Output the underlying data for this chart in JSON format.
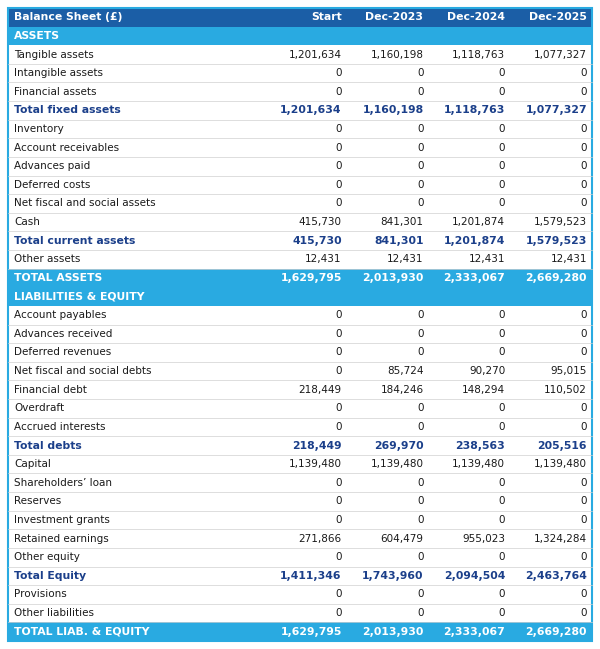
{
  "title": "Balance Sheet (£)",
  "columns": [
    "Balance Sheet (£)",
    "Start",
    "Dec-2023",
    "Dec-2024",
    "Dec-2025"
  ],
  "header_bg": "#1b5ea6",
  "header_text": "#ffffff",
  "section_bg": "#29aae1",
  "section_text": "#ffffff",
  "total_text": "#1b3f8a",
  "footer_bg": "#29aae1",
  "footer_text": "#ffffff",
  "normal_row_bg": "#ffffff",
  "rows": [
    {
      "label": "ASSETS",
      "values": [
        "",
        "",
        "",
        ""
      ],
      "type": "section"
    },
    {
      "label": "Tangible assets",
      "values": [
        "1,201,634",
        "1,160,198",
        "1,118,763",
        "1,077,327"
      ],
      "type": "data"
    },
    {
      "label": "Intangible assets",
      "values": [
        "0",
        "0",
        "0",
        "0"
      ],
      "type": "data"
    },
    {
      "label": "Financial assets",
      "values": [
        "0",
        "0",
        "0",
        "0"
      ],
      "type": "data"
    },
    {
      "label": "Total fixed assets",
      "values": [
        "1,201,634",
        "1,160,198",
        "1,118,763",
        "1,077,327"
      ],
      "type": "total"
    },
    {
      "label": "Inventory",
      "values": [
        "0",
        "0",
        "0",
        "0"
      ],
      "type": "data"
    },
    {
      "label": "Account receivables",
      "values": [
        "0",
        "0",
        "0",
        "0"
      ],
      "type": "data"
    },
    {
      "label": "Advances paid",
      "values": [
        "0",
        "0",
        "0",
        "0"
      ],
      "type": "data"
    },
    {
      "label": "Deferred costs",
      "values": [
        "0",
        "0",
        "0",
        "0"
      ],
      "type": "data"
    },
    {
      "label": "Net fiscal and social assets",
      "values": [
        "0",
        "0",
        "0",
        "0"
      ],
      "type": "data"
    },
    {
      "label": "Cash",
      "values": [
        "415,730",
        "841,301",
        "1,201,874",
        "1,579,523"
      ],
      "type": "data"
    },
    {
      "label": "Total current assets",
      "values": [
        "415,730",
        "841,301",
        "1,201,874",
        "1,579,523"
      ],
      "type": "total"
    },
    {
      "label": "Other assets",
      "values": [
        "12,431",
        "12,431",
        "12,431",
        "12,431"
      ],
      "type": "data"
    },
    {
      "label": "TOTAL ASSETS",
      "values": [
        "1,629,795",
        "2,013,930",
        "2,333,067",
        "2,669,280"
      ],
      "type": "footer"
    },
    {
      "label": "LIABILITIES & EQUITY",
      "values": [
        "",
        "",
        "",
        ""
      ],
      "type": "section"
    },
    {
      "label": "Account payables",
      "values": [
        "0",
        "0",
        "0",
        "0"
      ],
      "type": "data"
    },
    {
      "label": "Advances received",
      "values": [
        "0",
        "0",
        "0",
        "0"
      ],
      "type": "data"
    },
    {
      "label": "Deferred revenues",
      "values": [
        "0",
        "0",
        "0",
        "0"
      ],
      "type": "data"
    },
    {
      "label": "Net fiscal and social debts",
      "values": [
        "0",
        "85,724",
        "90,270",
        "95,015"
      ],
      "type": "data"
    },
    {
      "label": "Financial debt",
      "values": [
        "218,449",
        "184,246",
        "148,294",
        "110,502"
      ],
      "type": "data"
    },
    {
      "label": "Overdraft",
      "values": [
        "0",
        "0",
        "0",
        "0"
      ],
      "type": "data"
    },
    {
      "label": "Accrued interests",
      "values": [
        "0",
        "0",
        "0",
        "0"
      ],
      "type": "data"
    },
    {
      "label": "Total debts",
      "values": [
        "218,449",
        "269,970",
        "238,563",
        "205,516"
      ],
      "type": "total"
    },
    {
      "label": "Capital",
      "values": [
        "1,139,480",
        "1,139,480",
        "1,139,480",
        "1,139,480"
      ],
      "type": "data"
    },
    {
      "label": "Shareholders’ loan",
      "values": [
        "0",
        "0",
        "0",
        "0"
      ],
      "type": "data"
    },
    {
      "label": "Reserves",
      "values": [
        "0",
        "0",
        "0",
        "0"
      ],
      "type": "data"
    },
    {
      "label": "Investment grants",
      "values": [
        "0",
        "0",
        "0",
        "0"
      ],
      "type": "data"
    },
    {
      "label": "Retained earnings",
      "values": [
        "271,866",
        "604,479",
        "955,023",
        "1,324,284"
      ],
      "type": "data"
    },
    {
      "label": "Other equity",
      "values": [
        "0",
        "0",
        "0",
        "0"
      ],
      "type": "data"
    },
    {
      "label": "Total Equity",
      "values": [
        "1,411,346",
        "1,743,960",
        "2,094,504",
        "2,463,764"
      ],
      "type": "total"
    },
    {
      "label": "Provisions",
      "values": [
        "0",
        "0",
        "0",
        "0"
      ],
      "type": "data"
    },
    {
      "label": "Other liabilities",
      "values": [
        "0",
        "0",
        "0",
        "0"
      ],
      "type": "data"
    },
    {
      "label": "TOTAL LIAB. & EQUITY",
      "values": [
        "1,629,795",
        "2,013,930",
        "2,333,067",
        "2,669,280"
      ],
      "type": "footer"
    }
  ],
  "figsize": [
    6.0,
    6.49
  ],
  "dpi": 100
}
